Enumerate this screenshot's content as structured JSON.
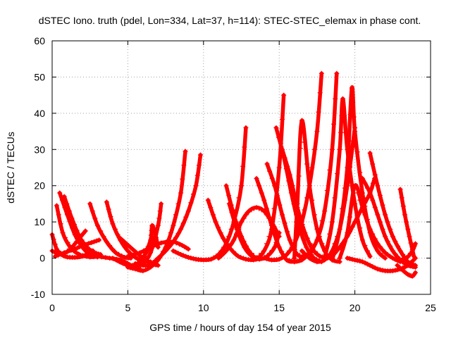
{
  "chart_data": {
    "type": "scatter",
    "title": "dSTEC Iono. truth (pdel, Lon=334, Lat=37, h=114): STEC-STEC_elemax in phase cont.",
    "xlabel": "GPS time / hours of day 154 of year 2015",
    "ylabel": "dSTEC  / TECUs",
    "xlim": [
      0,
      25
    ],
    "ylim": [
      -10,
      60
    ],
    "xticks": [
      0,
      5,
      10,
      15,
      20,
      25
    ],
    "yticks": [
      -10,
      0,
      10,
      20,
      30,
      40,
      50,
      60
    ],
    "xtick_labels": [
      "0",
      "5",
      "10",
      "15",
      "20",
      "25"
    ],
    "ytick_labels": [
      "-10",
      "0",
      "10",
      "20",
      "30",
      "40",
      "50",
      "60"
    ],
    "grid": true,
    "marker": "+",
    "color": "#ff0000",
    "series": [
      {
        "x": [
          0.0,
          0.3,
          0.7,
          1.0,
          1.5,
          2.0,
          2.7
        ],
        "y": [
          6.5,
          2.5,
          0.8,
          0.3,
          0.2,
          0.5,
          2.0
        ]
      },
      {
        "x": [
          0.3,
          0.7,
          1.2,
          1.8,
          2.5,
          3.2
        ],
        "y": [
          14.5,
          7.0,
          3.0,
          1.0,
          0.3,
          0.5
        ]
      },
      {
        "x": [
          0.5,
          1.0,
          1.5,
          2.0,
          2.5,
          3.0
        ],
        "y": [
          18.0,
          12.0,
          6.5,
          3.0,
          1.0,
          0.3
        ]
      },
      {
        "x": [
          0.8,
          1.3,
          1.8,
          2.3,
          2.8,
          3.2
        ],
        "y": [
          17.0,
          11.0,
          6.0,
          3.0,
          1.5,
          1.0
        ]
      },
      {
        "x": [
          0.0,
          0.6,
          1.2,
          1.8,
          2.2
        ],
        "y": [
          2.0,
          1.0,
          2.5,
          5.5,
          7.5
        ]
      },
      {
        "x": [
          0.2,
          0.8,
          1.5,
          2.0,
          2.6,
          3.1
        ],
        "y": [
          0.5,
          1.5,
          2.5,
          3.5,
          4.3,
          5.0
        ]
      },
      {
        "x": [
          2.5,
          3.0,
          3.6,
          4.2,
          4.8,
          5.2
        ],
        "y": [
          15.0,
          9.0,
          4.5,
          1.5,
          0.2,
          0.0
        ]
      },
      {
        "x": [
          3.6,
          4.0,
          4.5,
          5.0,
          5.5,
          6.0,
          6.5
        ],
        "y": [
          15.5,
          9.5,
          5.0,
          2.0,
          0.2,
          -0.8,
          -1.0
        ]
      },
      {
        "x": [
          3.0,
          3.8,
          4.5,
          5.0,
          5.4,
          5.8
        ],
        "y": [
          0.5,
          0.0,
          -0.5,
          -1.5,
          -2.5,
          -3.0
        ]
      },
      {
        "x": [
          4.5,
          5.3,
          6.0,
          6.5,
          7.0
        ],
        "y": [
          5.5,
          2.5,
          0.0,
          -1.5,
          -2.0
        ]
      },
      {
        "x": [
          4.0,
          4.7,
          5.3,
          5.8,
          6.2,
          6.8
        ],
        "y": [
          0.0,
          -1.5,
          -2.0,
          -1.0,
          1.5,
          6.0
        ]
      },
      {
        "x": [
          4.5,
          5.0,
          5.5,
          6.0,
          6.5,
          7.0,
          7.2
        ],
        "y": [
          -1.0,
          -2.0,
          -2.5,
          -1.5,
          1.5,
          9.0,
          15.0
        ]
      },
      {
        "x": [
          5.0,
          5.5,
          6.0,
          6.5,
          7.0,
          7.5,
          8.0,
          8.5,
          8.8
        ],
        "y": [
          -2.5,
          -3.0,
          -3.5,
          -2.5,
          -0.5,
          3.0,
          9.0,
          18.0,
          29.5
        ]
      },
      {
        "x": [
          5.5,
          6.0,
          6.5,
          7.0,
          7.5,
          8.0,
          8.5,
          9.0,
          9.5,
          9.8
        ],
        "y": [
          -1.5,
          -2.0,
          -1.8,
          0.0,
          2.0,
          4.5,
          8.0,
          13.0,
          20.0,
          28.5
        ]
      },
      {
        "x": [
          5.0,
          5.8,
          6.5,
          7.2,
          8.0,
          8.6,
          9.0
        ],
        "y": [
          0.5,
          1.5,
          3.0,
          4.2,
          4.5,
          3.5,
          2.5
        ]
      },
      {
        "x": [
          6.0,
          6.5,
          6.6,
          6.8,
          7.0
        ],
        "y": [
          -0.5,
          5.0,
          9.0,
          7.0,
          3.0
        ]
      },
      {
        "x": [
          8.0,
          8.5,
          9.0,
          9.5,
          10.0,
          10.5,
          11.0,
          11.5,
          12.0,
          12.5,
          12.8
        ],
        "y": [
          2.0,
          1.0,
          0.2,
          -0.3,
          -0.5,
          -0.3,
          1.0,
          4.0,
          10.0,
          20.0,
          36.0
        ]
      },
      {
        "x": [
          10.3,
          10.8,
          11.3,
          11.8,
          12.3,
          12.8,
          13.3,
          13.8
        ],
        "y": [
          16.0,
          10.0,
          5.5,
          2.5,
          0.5,
          -0.3,
          -0.5,
          0.0
        ]
      },
      {
        "x": [
          11.0,
          11.5,
          12.0,
          12.5,
          13.0,
          13.5,
          14.0,
          14.5,
          15.0
        ],
        "y": [
          0.0,
          2.0,
          5.0,
          10.0,
          13.0,
          14.0,
          13.0,
          10.0,
          6.0
        ]
      },
      {
        "x": [
          11.5,
          12.0,
          12.5,
          13.0,
          13.5,
          14.0,
          14.5,
          15.0,
          15.3
        ],
        "y": [
          20.0,
          12.0,
          6.0,
          2.0,
          0.0,
          2.0,
          8.0,
          25.0,
          45.0
        ]
      },
      {
        "x": [
          11.7,
          12.2,
          12.7,
          13.2,
          13.7,
          14.2,
          14.7,
          15.0
        ],
        "y": [
          15.0,
          8.0,
          3.0,
          0.5,
          -0.3,
          0.5,
          3.0,
          7.0
        ]
      },
      {
        "x": [
          13.5,
          14.0,
          14.5,
          15.0,
          15.5,
          16.0,
          16.5
        ],
        "y": [
          22.0,
          16.0,
          9.0,
          3.0,
          -0.5,
          -1.0,
          -0.5
        ]
      },
      {
        "x": [
          14.2,
          14.7,
          15.2,
          15.7,
          16.2,
          16.7,
          17.2
        ],
        "y": [
          26.0,
          20.0,
          12.0,
          5.0,
          1.0,
          0.5,
          2.0
        ]
      },
      {
        "x": [
          14.8,
          15.3,
          15.8,
          16.3,
          16.8,
          17.3,
          17.8
        ],
        "y": [
          36.0,
          28.0,
          18.0,
          9.0,
          3.0,
          0.0,
          -1.0
        ]
      },
      {
        "x": [
          15.2,
          15.7,
          16.2,
          16.7,
          17.2,
          17.7,
          18.2
        ],
        "y": [
          30.0,
          23.0,
          14.0,
          7.0,
          2.5,
          0.5,
          0.0
        ]
      },
      {
        "x": [
          14.0,
          14.5,
          15.0,
          15.5,
          16.0,
          16.5,
          17.0,
          17.5,
          17.8
        ],
        "y": [
          0.0,
          -0.5,
          -0.3,
          1.0,
          4.0,
          10.0,
          20.0,
          35.0,
          51.0
        ]
      },
      {
        "x": [
          15.5,
          16.0,
          16.5,
          17.0,
          17.5,
          18.0,
          18.5,
          18.8
        ],
        "y": [
          -0.5,
          -1.0,
          -0.5,
          1.5,
          5.0,
          13.0,
          30.0,
          51.0
        ]
      },
      {
        "x": [
          16.0,
          16.2,
          16.5,
          17.0,
          17.5,
          18.0,
          18.5,
          19.0
        ],
        "y": [
          0.0,
          15.0,
          38.0,
          20.0,
          8.0,
          2.0,
          -0.5,
          -1.0
        ]
      },
      {
        "x": [
          16.5,
          17.0,
          17.5,
          18.0,
          18.5,
          19.0,
          19.5,
          20.0
        ],
        "y": [
          2.0,
          0.0,
          -1.0,
          -0.5,
          2.0,
          8.0,
          20.0,
          36.0
        ]
      },
      {
        "x": [
          18.0,
          18.5,
          19.0,
          19.2,
          19.5,
          20.0,
          20.5,
          21.0
        ],
        "y": [
          0.0,
          10.0,
          30.0,
          44.0,
          30.0,
          15.0,
          5.0,
          0.5
        ]
      },
      {
        "x": [
          18.5,
          19.0,
          19.5,
          19.8,
          20.0,
          20.5,
          21.0,
          21.5,
          22.0
        ],
        "y": [
          -0.5,
          8.0,
          25.0,
          47.0,
          35.0,
          18.0,
          7.0,
          2.0,
          0.0
        ]
      },
      {
        "x": [
          19.0,
          19.5,
          20.0,
          20.5,
          21.0,
          21.5,
          22.0,
          22.5,
          23.0
        ],
        "y": [
          0.0,
          7.0,
          20.0,
          14.0,
          8.0,
          4.0,
          1.5,
          0.0,
          -1.0
        ]
      },
      {
        "x": [
          18.5,
          19.0,
          19.5,
          20.0,
          20.5,
          21.0,
          21.3
        ],
        "y": [
          0.5,
          3.0,
          6.0,
          10.0,
          14.0,
          18.0,
          22.0
        ]
      },
      {
        "x": [
          20.5,
          21.0,
          21.5,
          22.0,
          22.5,
          23.0,
          23.5,
          24.0
        ],
        "y": [
          22.0,
          18.0,
          12.0,
          6.0,
          2.0,
          -0.5,
          -2.0,
          -2.5
        ]
      },
      {
        "x": [
          21.0,
          21.5,
          22.0,
          22.5,
          23.0,
          23.5,
          24.0
        ],
        "y": [
          29.0,
          20.0,
          12.0,
          6.0,
          2.0,
          -1.0,
          -2.0
        ]
      },
      {
        "x": [
          19.5,
          20.0,
          20.5,
          21.0,
          21.5,
          22.0,
          22.5,
          23.0,
          23.5,
          24.0
        ],
        "y": [
          0.0,
          -0.5,
          -1.0,
          -2.0,
          -3.0,
          -3.5,
          -3.5,
          -3.0,
          -2.0,
          0.0
        ]
      },
      {
        "x": [
          23.0,
          23.3,
          23.6,
          23.9
        ],
        "y": [
          19.0,
          12.0,
          6.0,
          0.5
        ]
      },
      {
        "x": [
          22.8,
          23.2,
          23.5,
          23.8,
          24.0
        ],
        "y": [
          -2.0,
          -3.5,
          -4.5,
          -5.0,
          -4.0
        ]
      },
      {
        "x": [
          23.0,
          23.4,
          23.8,
          24.0
        ],
        "y": [
          -0.5,
          0.0,
          2.0,
          4.0
        ]
      }
    ]
  }
}
